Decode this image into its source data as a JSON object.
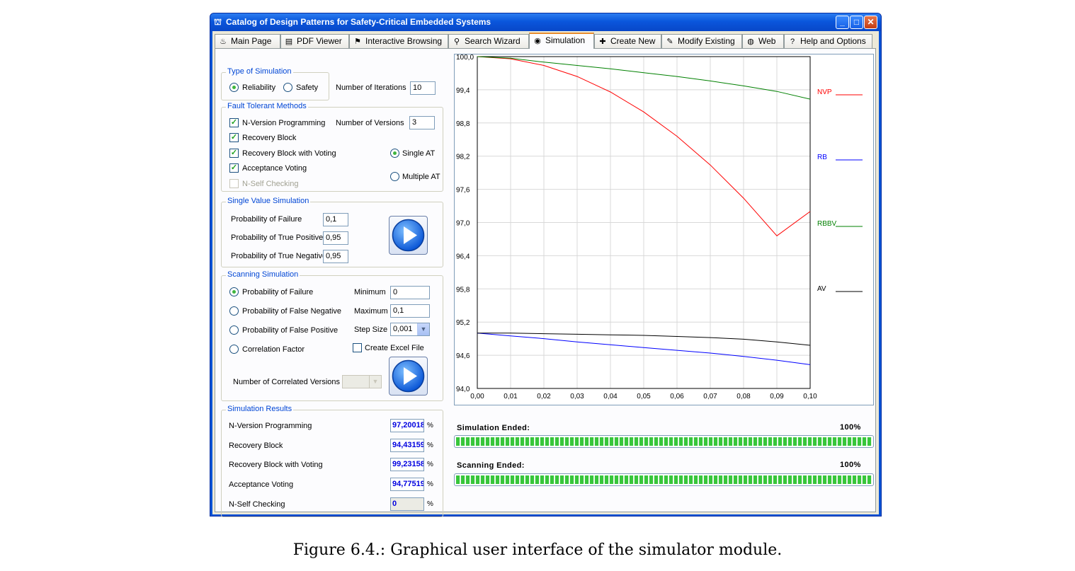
{
  "window": {
    "title": "Catalog of Design Patterns for Safety-Critical Embedded Systems",
    "min_label": "_",
    "max_label": "□",
    "close_label": "✕"
  },
  "tabs": [
    {
      "label": "Main Page",
      "icon": "♨"
    },
    {
      "label": "PDF Viewer",
      "icon": "▤"
    },
    {
      "label": "Interactive Browsing",
      "icon": "⚑"
    },
    {
      "label": "Search Wizard",
      "icon": "⚲"
    },
    {
      "label": "Simulation",
      "icon": "◉"
    },
    {
      "label": "Create New",
      "icon": "✚"
    },
    {
      "label": "Modify Existing",
      "icon": "✎"
    },
    {
      "label": "Web",
      "icon": "◍"
    },
    {
      "label": "Help and Options",
      "icon": "?"
    }
  ],
  "type_of_simulation": {
    "legend": "Type of Simulation",
    "reliability": "Reliability",
    "safety": "Safety",
    "iterations_label": "Number of Iterations",
    "iterations_value": "10"
  },
  "fault_tolerant": {
    "legend": "Fault Tolerant Methods",
    "nvp": "N-Version Programming",
    "versions_label": "Number of Versions",
    "versions_value": "3",
    "rb": "Recovery Block",
    "rbv": "Recovery Block with Voting",
    "single_at": "Single AT",
    "av": "Acceptance Voting",
    "multiple_at": "Multiple AT",
    "nsc": "N-Self Checking"
  },
  "single_value": {
    "legend": "Single Value Simulation",
    "pf_label": "Probability of Failure",
    "pf_value": "0,1",
    "ptp_label": "Probability of True Positive",
    "ptp_value": "0,95",
    "ptn_label": "Probability of True Negative",
    "ptn_value": "0,95"
  },
  "scanning": {
    "legend": "Scanning Simulation",
    "opt_pf": "Probability of Failure",
    "opt_pfn": "Probability of  False Negative",
    "opt_pfp": "Probability of  False Positive",
    "opt_cf": "Correlation Factor",
    "min_label": "Minimum",
    "min_value": "0",
    "max_label": "Maximum",
    "max_value": "0,1",
    "step_label": "Step Size",
    "step_value": "0,001",
    "excel_label": "Create Excel File",
    "correlated_label": "Number of Correlated Versions"
  },
  "results": {
    "legend": "Simulation Results",
    "rows": [
      {
        "label": "N-Version Programming",
        "value": "97,20018",
        "unit": "%"
      },
      {
        "label": "Recovery Block",
        "value": "94,43159",
        "unit": "%"
      },
      {
        "label": "Recovery Block with Voting",
        "value": "99,23158",
        "unit": "%"
      },
      {
        "label": "Acceptance Voting",
        "value": "94,77519",
        "unit": "%"
      },
      {
        "label": "N-Self Checking",
        "value": "0",
        "unit": "%"
      }
    ]
  },
  "status": {
    "simulation_label": "Simulation Ended:",
    "simulation_pct": "100%",
    "simulation_progress": 1.0,
    "scanning_label": "Scanning Ended:",
    "scanning_pct": "100%",
    "scanning_progress": 1.0
  },
  "chart_data": {
    "type": "line",
    "xlim": [
      0,
      0.1
    ],
    "ylim": [
      94.0,
      100.0
    ],
    "x_ticks": [
      "0,00",
      "0,01",
      "0,02",
      "0,03",
      "0,04",
      "0,05",
      "0,06",
      "0,07",
      "0,08",
      "0,09",
      "0,10"
    ],
    "y_ticks": [
      "100,0",
      "99,4",
      "98,8",
      "98,2",
      "97,6",
      "97,0",
      "96,4",
      "95,8",
      "95,2",
      "94,6",
      "94,0"
    ],
    "grid": true,
    "legend_position": "right",
    "x": [
      0,
      0.01,
      0.02,
      0.03,
      0.04,
      0.05,
      0.06,
      0.07,
      0.08,
      0.09,
      0.1
    ],
    "series": [
      {
        "name": "NVP",
        "color": "#ff0000",
        "values": [
          100.0,
          99.96,
          99.84,
          99.64,
          99.36,
          99.0,
          98.56,
          98.04,
          97.44,
          96.76,
          97.2
        ]
      },
      {
        "name": "RB",
        "color": "#0000ff",
        "values": [
          95.0,
          94.95,
          94.9,
          94.84,
          94.79,
          94.74,
          94.69,
          94.64,
          94.58,
          94.51,
          94.43
        ]
      },
      {
        "name": "RBBV",
        "color": "#008000",
        "values": [
          100.0,
          99.97,
          99.9,
          99.84,
          99.78,
          99.71,
          99.64,
          99.56,
          99.47,
          99.37,
          99.23
        ]
      },
      {
        "name": "AV",
        "color": "#000000",
        "values": [
          95.0,
          95.0,
          94.99,
          94.98,
          94.97,
          94.96,
          94.94,
          94.92,
          94.89,
          94.84,
          94.78
        ]
      }
    ],
    "legend": [
      {
        "name": "NVP",
        "color": "#ff0000"
      },
      {
        "name": "RB",
        "color": "#0000ff"
      },
      {
        "name": "RBBV",
        "color": "#008000"
      },
      {
        "name": "AV",
        "color": "#000000"
      }
    ]
  },
  "caption": "Figure 6.4.: Graphical user interface of the simulator module."
}
